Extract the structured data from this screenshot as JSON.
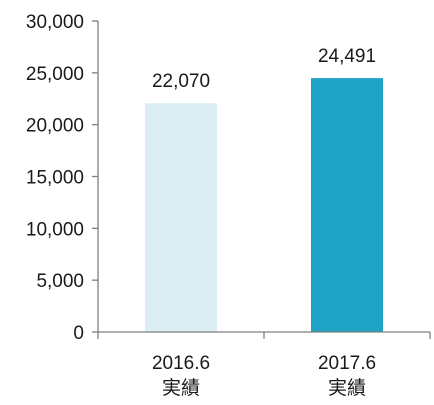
{
  "chart_data": {
    "type": "bar",
    "title": "",
    "xlabel": "",
    "ylabel": "",
    "ylim": [
      0,
      30000
    ],
    "yticks": [
      0,
      5000,
      10000,
      15000,
      20000,
      25000,
      30000
    ],
    "ytick_labels": [
      "0",
      "5,000",
      "10,000",
      "15,000",
      "20,000",
      "25,000",
      "30,000"
    ],
    "grid": false,
    "legend": "none",
    "categories": [
      {
        "line1": "2016.6",
        "line2": "実績"
      },
      {
        "line1": "2017.6",
        "line2": "実績"
      }
    ],
    "values": [
      22070,
      24491
    ],
    "value_labels": [
      "22,070",
      "24,491"
    ],
    "colors": [
      "#daeef3",
      "#1fa3c6"
    ]
  }
}
